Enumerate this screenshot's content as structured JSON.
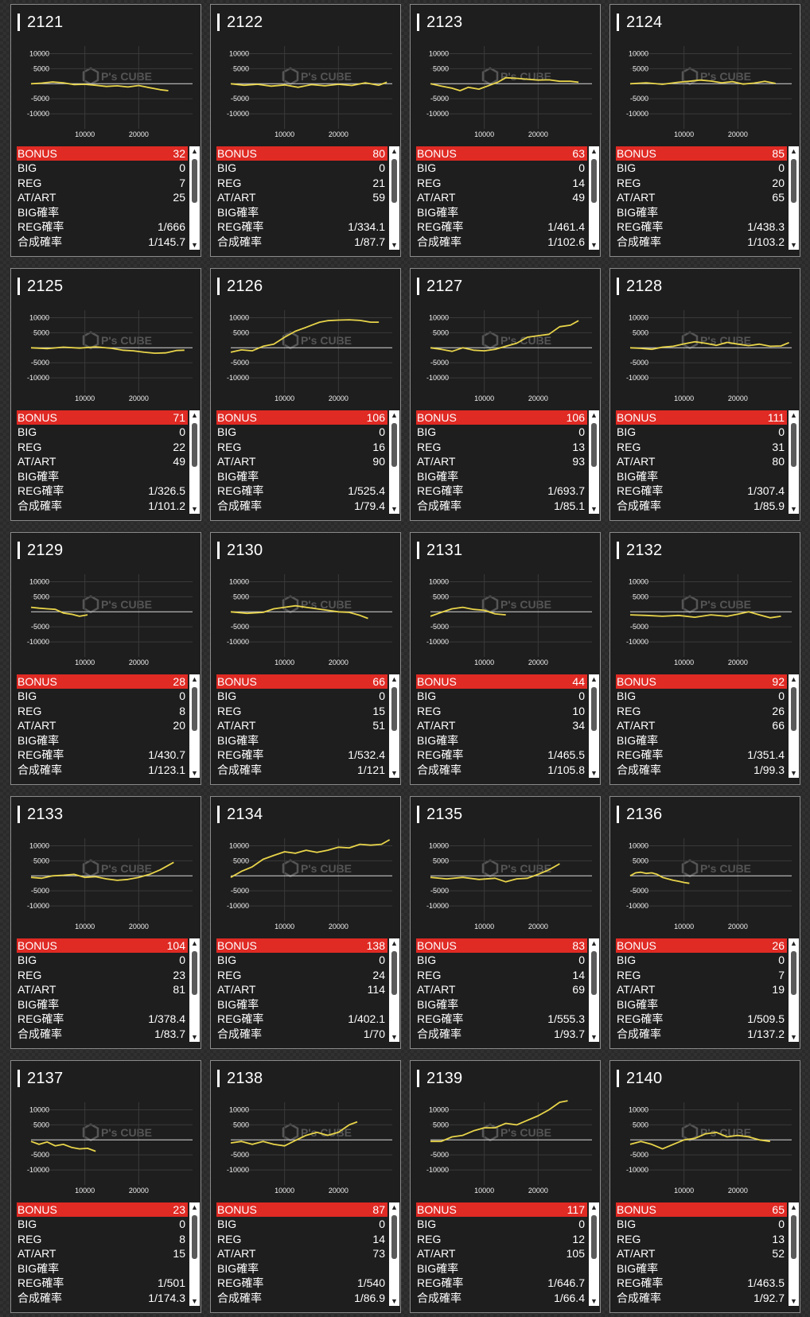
{
  "labels": {
    "bonus": "BONUS",
    "big": "BIG",
    "reg": "REG",
    "at": "AT/ART",
    "big_rate": "BIG確率",
    "reg_rate": "REG確率",
    "total_rate": "合成確率"
  },
  "graph": {
    "y_ticks": [
      "10000",
      "5000",
      "-5000",
      "-10000"
    ],
    "x_ticks": [
      "10000",
      "20000"
    ],
    "watermark": "P's CUBE",
    "line_color": "#e8d44a"
  },
  "colors": {
    "bonus_bar": "#e02a24",
    "card_bg": "#1e1e1e",
    "border": "#8a8a8a"
  },
  "machines": [
    {
      "no": "2121",
      "bonus": "32",
      "big": "0",
      "reg": "7",
      "at": "25",
      "big_rate": "",
      "reg_rate": "1/666",
      "total_rate": "1/145.7",
      "chart_data": {
        "type": "line",
        "x": [
          0,
          2000,
          4000,
          6000,
          8000,
          10000,
          12000,
          14000,
          16000,
          18000,
          20000,
          22000,
          24000,
          25500
        ],
        "y": [
          0,
          200,
          600,
          300,
          -300,
          -200,
          -500,
          -900,
          -700,
          -1100,
          -600,
          -1300,
          -2000,
          -2300
        ]
      }
    },
    {
      "no": "2122",
      "bonus": "80",
      "big": "0",
      "reg": "21",
      "at": "59",
      "big_rate": "",
      "reg_rate": "1/334.1",
      "total_rate": "1/87.7",
      "chart_data": {
        "type": "line",
        "x": [
          0,
          2500,
          5000,
          7500,
          10000,
          12500,
          15000,
          17500,
          20000,
          22500,
          25000,
          27500,
          29000
        ],
        "y": [
          0,
          -500,
          -200,
          -800,
          -400,
          -1200,
          -300,
          -700,
          -200,
          -600,
          300,
          -500,
          500
        ]
      }
    },
    {
      "no": "2123",
      "bonus": "63",
      "big": "0",
      "reg": "14",
      "at": "49",
      "big_rate": "",
      "reg_rate": "1/461.4",
      "total_rate": "1/102.6",
      "chart_data": {
        "type": "line",
        "x": [
          0,
          2000,
          4000,
          5500,
          7000,
          9000,
          11000,
          12500,
          14000,
          16000,
          18000,
          20000,
          22000,
          24000,
          26000,
          27500
        ],
        "y": [
          0,
          -800,
          -1500,
          -2300,
          -1200,
          -1800,
          -500,
          500,
          2000,
          1800,
          1500,
          1200,
          1300,
          800,
          800,
          500
        ]
      }
    },
    {
      "no": "2124",
      "bonus": "85",
      "big": "0",
      "reg": "20",
      "at": "65",
      "big_rate": "",
      "reg_rate": "1/438.3",
      "total_rate": "1/103.2",
      "chart_data": {
        "type": "line",
        "x": [
          0,
          3000,
          6000,
          9000,
          11000,
          13000,
          15000,
          17000,
          19000,
          21000,
          23000,
          25000,
          27000
        ],
        "y": [
          0,
          300,
          -200,
          500,
          800,
          1200,
          900,
          300,
          700,
          -100,
          200,
          800,
          100
        ]
      }
    },
    {
      "no": "2125",
      "bonus": "71",
      "big": "0",
      "reg": "22",
      "at": "49",
      "big_rate": "",
      "reg_rate": "1/326.5",
      "total_rate": "1/101.2",
      "chart_data": {
        "type": "line",
        "x": [
          0,
          3000,
          6000,
          9000,
          12000,
          15000,
          17000,
          19000,
          21000,
          23000,
          25000,
          27000,
          28500
        ],
        "y": [
          0,
          -300,
          200,
          -100,
          300,
          -200,
          -800,
          -1000,
          -1500,
          -1800,
          -1700,
          -900,
          -800
        ]
      }
    },
    {
      "no": "2126",
      "bonus": "106",
      "big": "0",
      "reg": "16",
      "at": "90",
      "big_rate": "",
      "reg_rate": "1/525.4",
      "total_rate": "1/79.4",
      "chart_data": {
        "type": "line",
        "x": [
          0,
          2000,
          4000,
          6000,
          8000,
          10000,
          12000,
          14000,
          15000,
          16500,
          18000,
          20000,
          22000,
          24000,
          26000,
          27500
        ],
        "y": [
          -1500,
          -700,
          -1000,
          500,
          1200,
          3500,
          5500,
          6800,
          7500,
          8500,
          9000,
          9200,
          9300,
          9100,
          8500,
          8500
        ]
      }
    },
    {
      "no": "2127",
      "bonus": "106",
      "big": "0",
      "reg": "13",
      "at": "93",
      "big_rate": "",
      "reg_rate": "1/693.7",
      "total_rate": "1/85.1",
      "chart_data": {
        "type": "line",
        "x": [
          0,
          2000,
          4000,
          6000,
          8000,
          10000,
          12000,
          14000,
          16000,
          18000,
          20000,
          22000,
          24000,
          26000,
          27500
        ],
        "y": [
          0,
          -500,
          -1200,
          0,
          -800,
          -1000,
          -500,
          500,
          1500,
          3500,
          4000,
          4500,
          7000,
          7500,
          9000
        ]
      }
    },
    {
      "no": "2128",
      "bonus": "111",
      "big": "0",
      "reg": "31",
      "at": "80",
      "big_rate": "",
      "reg_rate": "1/307.4",
      "total_rate": "1/85.9",
      "chart_data": {
        "type": "line",
        "x": [
          0,
          2000,
          4000,
          6000,
          8000,
          10000,
          12000,
          14000,
          16000,
          18000,
          20000,
          22000,
          24000,
          26000,
          28000,
          29500
        ],
        "y": [
          0,
          -200,
          -500,
          200,
          500,
          1300,
          2000,
          1500,
          800,
          1800,
          1200,
          700,
          1200,
          500,
          600,
          1700
        ]
      }
    },
    {
      "no": "2129",
      "bonus": "28",
      "big": "0",
      "reg": "8",
      "at": "20",
      "big_rate": "",
      "reg_rate": "1/430.7",
      "total_rate": "1/123.1",
      "chart_data": {
        "type": "line",
        "x": [
          0,
          1500,
          3000,
          4500,
          6000,
          7500,
          9000,
          10500
        ],
        "y": [
          1500,
          1200,
          1000,
          800,
          -400,
          -800,
          -1500,
          -1000
        ]
      }
    },
    {
      "no": "2130",
      "bonus": "66",
      "big": "0",
      "reg": "15",
      "at": "51",
      "big_rate": "",
      "reg_rate": "1/532.4",
      "total_rate": "1/121",
      "chart_data": {
        "type": "line",
        "x": [
          0,
          3000,
          6000,
          8000,
          10000,
          12000,
          14000,
          16000,
          18000,
          20000,
          22000,
          24000,
          25500
        ],
        "y": [
          0,
          -500,
          -200,
          1000,
          1500,
          2000,
          1500,
          1000,
          500,
          0,
          -200,
          -1200,
          -2200
        ]
      }
    },
    {
      "no": "2131",
      "bonus": "44",
      "big": "0",
      "reg": "10",
      "at": "34",
      "big_rate": "",
      "reg_rate": "1/465.5",
      "total_rate": "1/105.8",
      "chart_data": {
        "type": "line",
        "x": [
          0,
          2000,
          4000,
          6000,
          8000,
          10000,
          12000,
          14000
        ],
        "y": [
          -1500,
          -200,
          1000,
          1500,
          800,
          500,
          -700,
          -1000
        ]
      }
    },
    {
      "no": "2132",
      "bonus": "92",
      "big": "0",
      "reg": "26",
      "at": "66",
      "big_rate": "",
      "reg_rate": "1/351.4",
      "total_rate": "1/99.3",
      "chart_data": {
        "type": "line",
        "x": [
          0,
          3000,
          6000,
          9000,
          12000,
          15000,
          18000,
          20000,
          22000,
          24000,
          26000,
          28000
        ],
        "y": [
          -1000,
          -1200,
          -1500,
          -1200,
          -1800,
          -1000,
          -1500,
          -800,
          0,
          -1000,
          -2000,
          -1500
        ]
      }
    },
    {
      "no": "2133",
      "bonus": "104",
      "big": "0",
      "reg": "23",
      "at": "81",
      "big_rate": "",
      "reg_rate": "1/378.4",
      "total_rate": "1/83.7",
      "chart_data": {
        "type": "line",
        "x": [
          0,
          2000,
          4000,
          6000,
          8000,
          10000,
          12000,
          14000,
          16000,
          18000,
          20000,
          22000,
          24000,
          26500
        ],
        "y": [
          -500,
          -800,
          0,
          200,
          500,
          -500,
          -300,
          -1000,
          -1500,
          -1200,
          -500,
          500,
          2000,
          4500
        ]
      }
    },
    {
      "no": "2134",
      "bonus": "138",
      "big": "0",
      "reg": "24",
      "at": "114",
      "big_rate": "",
      "reg_rate": "1/402.1",
      "total_rate": "1/70",
      "chart_data": {
        "type": "line",
        "x": [
          0,
          2000,
          4000,
          6000,
          8000,
          10000,
          12000,
          14000,
          16000,
          18000,
          20000,
          22000,
          24000,
          26000,
          28000,
          29500
        ],
        "y": [
          -500,
          1500,
          3000,
          5500,
          6800,
          8000,
          7500,
          8500,
          7800,
          8500,
          9500,
          9300,
          10500,
          10200,
          10500,
          12000
        ]
      }
    },
    {
      "no": "2135",
      "bonus": "83",
      "big": "0",
      "reg": "14",
      "at": "69",
      "big_rate": "",
      "reg_rate": "1/555.3",
      "total_rate": "1/93.7",
      "chart_data": {
        "type": "line",
        "x": [
          0,
          3000,
          6000,
          9000,
          12000,
          14000,
          16000,
          18000,
          20000,
          22000,
          24000
        ],
        "y": [
          -500,
          -1000,
          -500,
          -1200,
          -800,
          -2000,
          -1000,
          -800,
          500,
          2000,
          4000
        ]
      }
    },
    {
      "no": "2136",
      "bonus": "26",
      "big": "0",
      "reg": "7",
      "at": "19",
      "big_rate": "",
      "reg_rate": "1/509.5",
      "total_rate": "1/137.2",
      "chart_data": {
        "type": "line",
        "x": [
          0,
          1000,
          2000,
          3000,
          4000,
          5000,
          6000,
          7000,
          8000,
          9000,
          10000,
          11000
        ],
        "y": [
          0,
          1000,
          1200,
          800,
          1000,
          500,
          -500,
          -1000,
          -1500,
          -1800,
          -2200,
          -2500
        ]
      }
    },
    {
      "no": "2137",
      "bonus": "23",
      "big": "0",
      "reg": "8",
      "at": "15",
      "big_rate": "",
      "reg_rate": "1/501",
      "total_rate": "1/174.3",
      "chart_data": {
        "type": "line",
        "x": [
          0,
          1500,
          3000,
          4500,
          6000,
          7500,
          9000,
          10500,
          12000
        ],
        "y": [
          -500,
          -1500,
          -700,
          -2000,
          -1500,
          -2500,
          -3000,
          -2800,
          -3800
        ]
      }
    },
    {
      "no": "2138",
      "bonus": "87",
      "big": "0",
      "reg": "14",
      "at": "73",
      "big_rate": "",
      "reg_rate": "1/540",
      "total_rate": "1/86.9",
      "chart_data": {
        "type": "line",
        "x": [
          0,
          2000,
          4000,
          6000,
          8000,
          10000,
          12000,
          14000,
          16000,
          18000,
          20000,
          22000,
          23500
        ],
        "y": [
          -1000,
          -500,
          -1500,
          -500,
          -1500,
          -2000,
          -200,
          1500,
          2500,
          1500,
          2500,
          5000,
          6000
        ]
      }
    },
    {
      "no": "2139",
      "bonus": "117",
      "big": "0",
      "reg": "12",
      "at": "105",
      "big_rate": "",
      "reg_rate": "1/646.7",
      "total_rate": "1/66.4",
      "chart_data": {
        "type": "line",
        "x": [
          0,
          2000,
          4000,
          6000,
          8000,
          10000,
          12000,
          14000,
          16000,
          18000,
          20000,
          22000,
          24000,
          25500
        ],
        "y": [
          -500,
          -500,
          1000,
          1500,
          3000,
          4000,
          4000,
          5500,
          5000,
          6500,
          8000,
          10000,
          12500,
          13000
        ]
      }
    },
    {
      "no": "2140",
      "bonus": "65",
      "big": "0",
      "reg": "13",
      "at": "52",
      "big_rate": "",
      "reg_rate": "1/463.5",
      "total_rate": "1/92.7",
      "chart_data": {
        "type": "line",
        "x": [
          0,
          2000,
          4000,
          6000,
          8000,
          10000,
          12000,
          14000,
          16000,
          18000,
          20000,
          22000,
          24000,
          26000
        ],
        "y": [
          -1500,
          -500,
          -1500,
          -3000,
          -1500,
          0,
          500,
          2000,
          2500,
          1000,
          1500,
          1000,
          0,
          -500
        ]
      }
    }
  ]
}
